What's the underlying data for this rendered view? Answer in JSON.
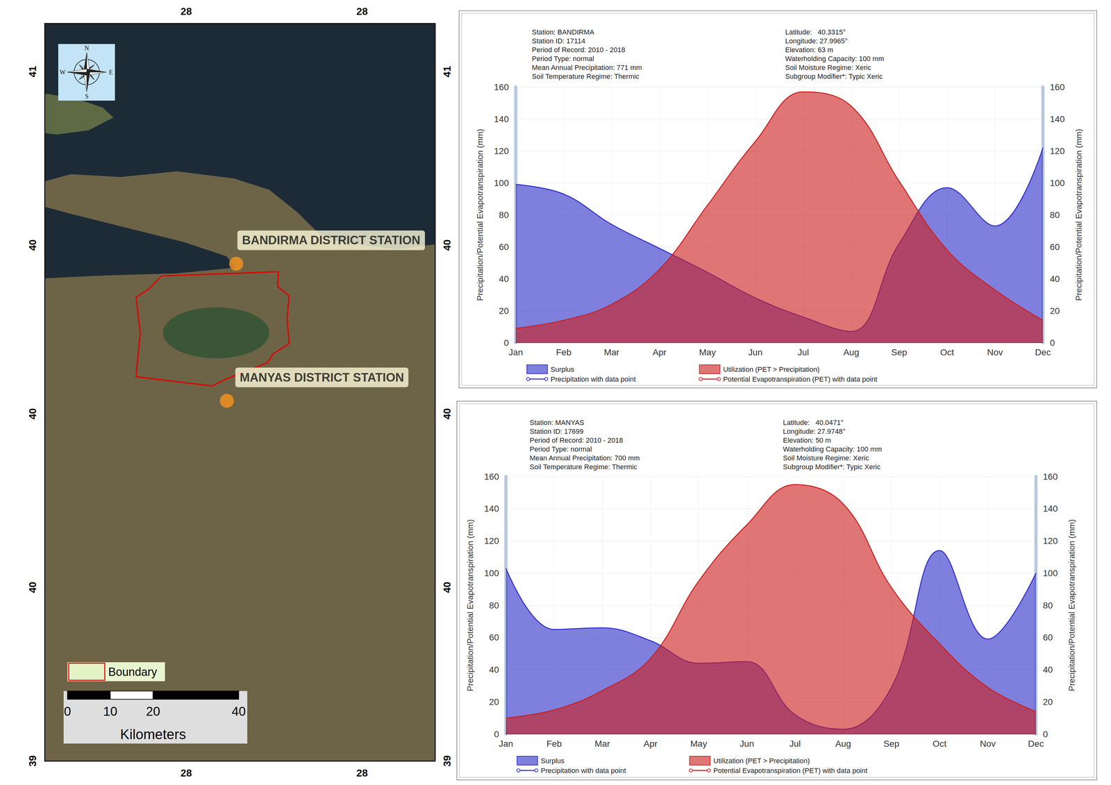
{
  "chart_data": [
    {
      "type": "map",
      "xlim": [
        27.55,
        28.46
      ],
      "ylim": [
        39.3,
        40.83
      ],
      "xticks": [
        {
          "value": 27.88,
          "label": "28"
        },
        {
          "value": 28.29,
          "label": "28"
        }
      ],
      "yticks": [
        {
          "value": 39.3,
          "label": "39"
        },
        {
          "value": 39.66,
          "label": "40"
        },
        {
          "value": 40.02,
          "label": "40"
        },
        {
          "value": 40.37,
          "label": "40"
        },
        {
          "value": 40.73,
          "label": "41"
        }
      ],
      "boundary": {
        "name": "Boundary",
        "color": "#e00000",
        "lon": [
          27.822,
          28.095,
          28.093,
          28.12,
          28.115,
          28.12,
          28.082,
          28.07,
          28.04,
          28.016,
          27.974,
          27.941,
          27.763,
          27.768,
          27.773,
          27.768,
          27.763,
          27.793,
          27.822
        ],
        "lat": [
          40.306,
          40.315,
          40.284,
          40.265,
          40.218,
          40.166,
          40.144,
          40.127,
          40.115,
          40.107,
          40.093,
          40.078,
          40.097,
          40.144,
          40.188,
          40.225,
          40.262,
          40.279,
          40.306
        ]
      },
      "stations": {
        "color": "#f7931e",
        "names": [
          "BANDIRMA DISTRICT STATION",
          "MANYAS DISTRICT STATION"
        ],
        "lon": [
          27.9965,
          27.9748
        ],
        "lat": [
          40.3315,
          40.0471
        ]
      },
      "compass": [
        "N",
        "E",
        "S",
        "W"
      ],
      "scale_bar": {
        "ticks": [
          0,
          10,
          20,
          40
        ],
        "label": "Kilometers"
      }
    },
    {
      "type": "line",
      "info_left": [
        "Station: BANDIRMA",
        "Station ID: 17114",
        "Period of Record: 2010 - 2018",
        "Period Type: normal",
        "Mean Annual Precipitation: 771 mm",
        "Soil Temperature Regime: Thermic"
      ],
      "info_right": [
        "Latitude:   40.3315°",
        "Longitude: 27.9965°",
        "Elevation: 63 m",
        "Waterholding Capacity: 100 mm",
        "Soil Moisture Regime: Xeric",
        "Subgroup Modifier*: Typic Xeric"
      ],
      "y_label": "Precipitation/Potential Evapotranspiration (mm)",
      "categories": [
        "Jan",
        "Feb",
        "Mar",
        "Apr",
        "May",
        "Jun",
        "Jul",
        "Aug",
        "Sep",
        "Oct",
        "Nov",
        "Dec"
      ],
      "ylim": [
        0,
        160
      ],
      "yticks": [
        0,
        20,
        40,
        60,
        80,
        100,
        120,
        140,
        160
      ],
      "grid": true,
      "series": [
        {
          "name": "Precipitation with data point",
          "area_name": "Surplus",
          "color": "#3030c8",
          "values": [
            99,
            93,
            74,
            59,
            44,
            28,
            16,
            7,
            62,
            97,
            73,
            122
          ]
        },
        {
          "name": "Potential Evapotranspiration (PET) with data point",
          "area_name": "Utilization (PET > Precipitation)",
          "color": "#cc2020",
          "values": [
            9,
            14,
            24,
            46,
            86,
            126,
            157,
            148,
            101,
            58,
            33,
            14
          ]
        }
      ]
    },
    {
      "type": "line",
      "info_left": [
        "Station: MANYAS",
        "Station ID: 17699",
        "Period of Record: 2010 - 2018",
        "Period Type: normal",
        "Mean Annual Precipitation: 700 mm",
        "Soil Temperature Regime: Thermic"
      ],
      "info_right": [
        "Latitude:   40.0471°",
        "Longitude: 27.9748°",
        "Elevation: 50 m",
        "Waterholding Capacity: 100 mm",
        "Soil Moisture Regime: Xeric",
        "Subgroup Modifier*: Typic Xeric"
      ],
      "y_label": "Precipitation/Potential Evapotranspiration (mm)",
      "categories": [
        "Jan",
        "Feb",
        "Mar",
        "Apr",
        "May",
        "Jun",
        "Jul",
        "Aug",
        "Sep",
        "Oct",
        "Nov",
        "Dec"
      ],
      "ylim": [
        0,
        160
      ],
      "yticks": [
        0,
        20,
        40,
        60,
        80,
        100,
        120,
        140,
        160
      ],
      "grid": true,
      "series": [
        {
          "name": "Precipitation with data point",
          "area_name": "Surplus",
          "color": "#3030c8",
          "values": [
            103,
            65,
            66,
            58,
            44,
            45,
            12,
            3,
            29,
            114,
            59,
            100
          ]
        },
        {
          "name": "Potential Evapotranspiration (PET) with data point",
          "area_name": "Utilization (PET > Precipitation)",
          "color": "#cc2020",
          "values": [
            10,
            15,
            27,
            47,
            95,
            130,
            155,
            143,
            91,
            56,
            29,
            14
          ]
        }
      ]
    }
  ]
}
